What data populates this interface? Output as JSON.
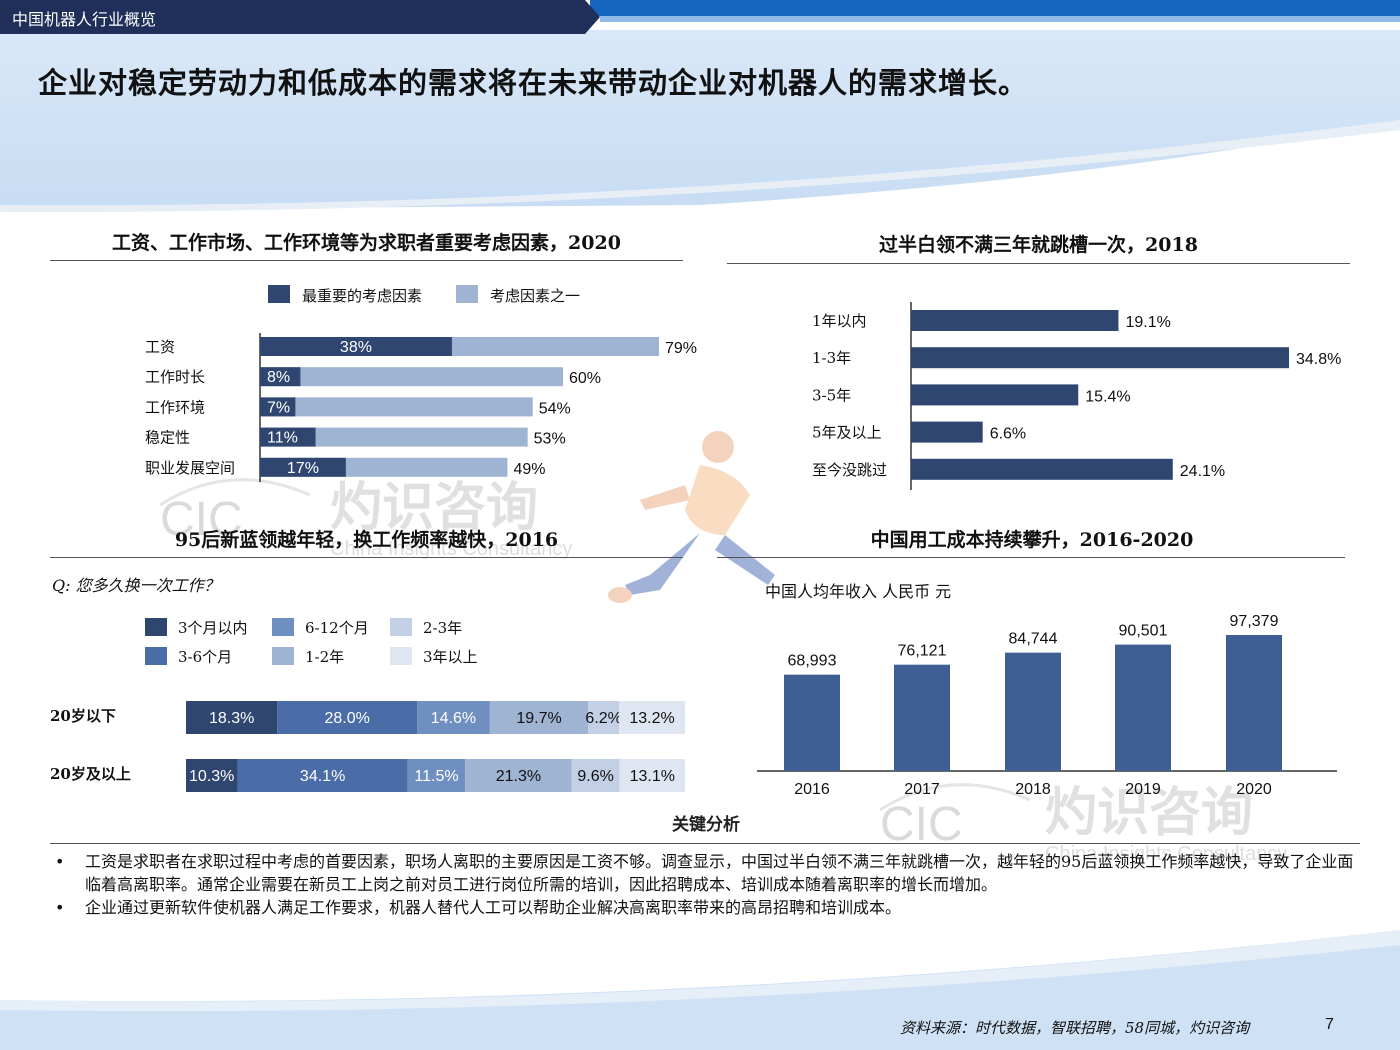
{
  "header": {
    "section": "中国机器人行业概览"
  },
  "headline": "企业对稳定劳动力和低成本的需求将在未来带动企业对机器人的需求增长。",
  "chart1": {
    "title": "工资、工作市场、工作环境等为求职者重要考虑因素，2020",
    "legend": [
      "最重要的考虑因素",
      "考虑因素之一"
    ],
    "colors": [
      "#2f4670",
      "#9fb3d3"
    ],
    "categories": [
      "工资",
      "工作时长",
      "工作环境",
      "稳定性",
      "职业发展空间"
    ],
    "inner_labels": [
      "38%",
      "8%",
      "7%",
      "11%",
      "17%"
    ],
    "outer_labels": [
      "79%",
      "60%",
      "54%",
      "53%",
      "49%"
    ]
  },
  "chart2": {
    "title": "过半白领不满三年就跳槽一次，2018",
    "categories": [
      "1年以内",
      "1-3年",
      "3-5年",
      "5年及以上",
      "至今没跳过"
    ],
    "labels": [
      "19.1%",
      "34.8%",
      "15.4%",
      "6.6%",
      "24.1%"
    ],
    "color": "#2f4670"
  },
  "chart3": {
    "title": "95后新蓝领越年轻，换工作频率越快，2016",
    "question": "Q: 您多久换一次工作？",
    "legend": [
      "3个月以内",
      "6-12个月",
      "2-3年",
      "3-6个月",
      "1-2年",
      "3年以上"
    ],
    "rows": [
      "20岁以下",
      "20岁及以上"
    ],
    "labels": [
      [
        "18.3%",
        "28.0%",
        "14.6%",
        "19.7%",
        "6.2%",
        "13.2%"
      ],
      [
        "10.3%",
        "34.1%",
        "11.5%",
        "21.3%",
        "9.6%",
        "13.1%"
      ]
    ],
    "colors": [
      "#2f4670",
      "#4a6da8",
      "#6f8fc0",
      "#9fb3d3",
      "#c2cfe4",
      "#e0e6f1"
    ]
  },
  "chart4": {
    "title": "中国用工成本持续攀升，2016-2020",
    "subtitle": "中国人均年收入 人民币 元",
    "categories": [
      "2016",
      "2017",
      "2018",
      "2019",
      "2020"
    ],
    "labels": [
      "68,993",
      "76,121",
      "84,744",
      "90,501",
      "97,379"
    ],
    "color": "#3f5f94"
  },
  "chart_data": [
    {
      "type": "bar",
      "title": "工资、工作市场、工作环境等为求职者重要考虑因素，2020",
      "orientation": "horizontal",
      "categories": [
        "工资",
        "工作时长",
        "工作环境",
        "稳定性",
        "职业发展空间"
      ],
      "series": [
        {
          "name": "最重要的考虑因素",
          "values": [
            38,
            8,
            7,
            11,
            17
          ]
        },
        {
          "name": "考虑因素之一",
          "values": [
            79,
            60,
            54,
            53,
            49
          ]
        }
      ],
      "unit": "%",
      "xlim": [
        0,
        100
      ]
    },
    {
      "type": "bar",
      "title": "过半白领不满三年就跳槽一次，2018",
      "orientation": "horizontal",
      "categories": [
        "1年以内",
        "1-3年",
        "3-5年",
        "5年及以上",
        "至今没跳过"
      ],
      "values": [
        19.1,
        34.8,
        15.4,
        6.6,
        24.1
      ],
      "unit": "%",
      "xlim": [
        0,
        34.8
      ]
    },
    {
      "type": "bar",
      "title": "95后新蓝领越年轻，换工作频率越快，2016",
      "orientation": "horizontal",
      "stacked": true,
      "categories": [
        "20岁以下",
        "20岁及以上"
      ],
      "series": [
        {
          "name": "3个月以内",
          "values": [
            18.3,
            10.3
          ]
        },
        {
          "name": "3-6个月",
          "values": [
            28.0,
            34.1
          ]
        },
        {
          "name": "6-12个月",
          "values": [
            14.6,
            11.5
          ]
        },
        {
          "name": "1-2年",
          "values": [
            19.7,
            21.3
          ]
        },
        {
          "name": "2-3年",
          "values": [
            6.2,
            9.6
          ]
        },
        {
          "name": "3年以上",
          "values": [
            13.2,
            13.1
          ]
        }
      ],
      "unit": "%"
    },
    {
      "type": "bar",
      "title": "中国用工成本持续攀升，2016-2020",
      "categories": [
        "2016",
        "2017",
        "2018",
        "2019",
        "2020"
      ],
      "values": [
        68993,
        76121,
        84744,
        90501,
        97379
      ],
      "ylabel": "中国人均年收入 人民币 元",
      "ylim": [
        0,
        100000
      ]
    }
  ],
  "analysis": {
    "title": "关键分析",
    "bullets": [
      "工资是求职者在求职过程中考虑的首要因素，职场人离职的主要原因是工资不够。调查显示，中国过半白领不满三年就跳槽一次，越年轻的95后蓝领换工作频率越快，导致了企业面临着高离职率。通常企业需要在新员工上岗之前对员工进行岗位所需的培训，因此招聘成本、培训成本随着离职率的增长而增加。",
      "企业通过更新软件使机器人满足工作要求，机器人替代人工可以帮助企业解决高离职率带来的高昂招聘和培训成本。"
    ]
  },
  "watermark": {
    "brand": "灼识咨询",
    "sub": "China Insights Consultancy",
    "logo": "CIC"
  },
  "footer": {
    "source": "资料来源：时代数据，智联招聘，58同城，灼识咨询",
    "page": "7"
  }
}
